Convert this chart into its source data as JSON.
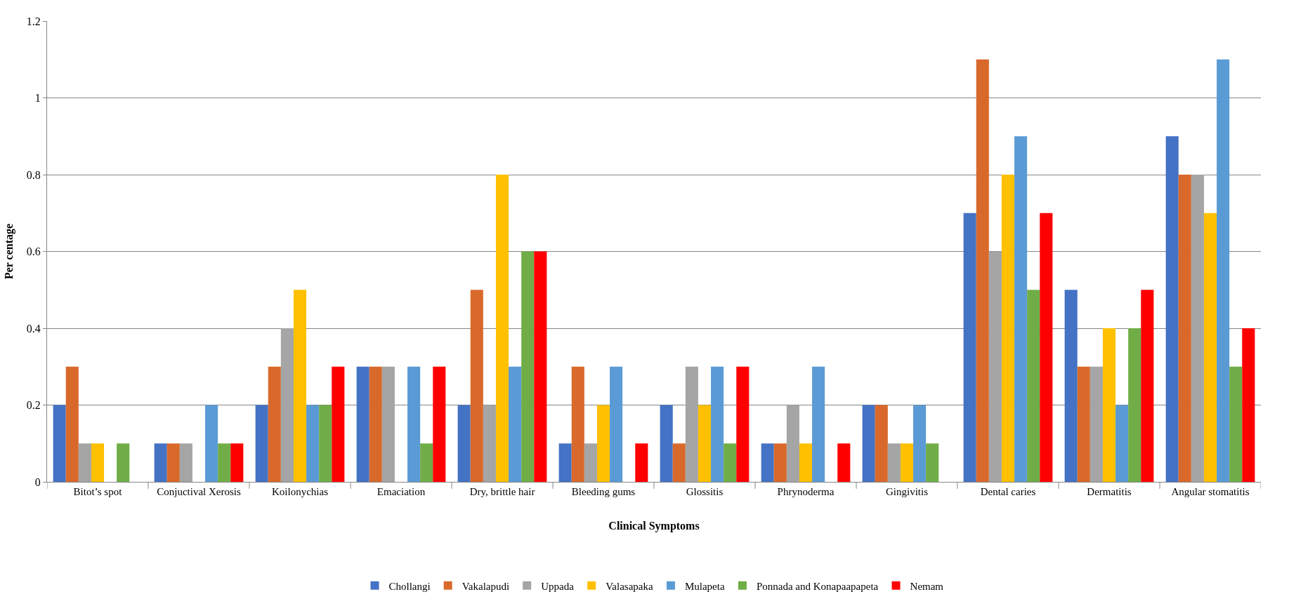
{
  "chart_data": {
    "type": "bar",
    "xlabel": "Clinical Symptoms",
    "ylabel": "Per centage",
    "categories": [
      "Bitot’s spot",
      "Conjuctival Xerosis",
      "Koilonychias",
      "Emaciation",
      "Dry, brittle hair",
      "Bleeding gums",
      "Glossitis",
      "Phrynoderma",
      "Gingivitis",
      "Dental caries",
      "Dermatitis",
      "Angular stomatitis"
    ],
    "series": [
      {
        "name": "Chollangi",
        "color": "#4472c4",
        "values": [
          0.2,
          0.1,
          0.2,
          0.3,
          0.2,
          0.1,
          0.2,
          0.1,
          0.2,
          0.7,
          0.5,
          0.9
        ]
      },
      {
        "name": "Vakalapudi",
        "color": "#d9692b",
        "values": [
          0.3,
          0.1,
          0.3,
          0.3,
          0.5,
          0.3,
          0.1,
          0.1,
          0.2,
          1.1,
          0.3,
          0.8
        ]
      },
      {
        "name": "Uppada",
        "color": "#a5a5a5",
        "values": [
          0.1,
          0.1,
          0.4,
          0.3,
          0.2,
          0.1,
          0.3,
          0.2,
          0.1,
          0.6,
          0.3,
          0.8
        ]
      },
      {
        "name": "Valasapaka",
        "color": "#ffc000",
        "values": [
          0.1,
          0,
          0.5,
          0,
          0.8,
          0.2,
          0.2,
          0.1,
          0.1,
          0.8,
          0.4,
          0.7
        ]
      },
      {
        "name": "Mulapeta",
        "color": "#5b9bd5",
        "values": [
          0,
          0.2,
          0.2,
          0.3,
          0.3,
          0.3,
          0.3,
          0.3,
          0.2,
          0.9,
          0.2,
          1.1
        ]
      },
      {
        "name": "Ponnada and Konapaapapeta",
        "color": "#70ad47",
        "values": [
          0.1,
          0.1,
          0.2,
          0.1,
          0.6,
          0,
          0.1,
          0,
          0.1,
          0.5,
          0.4,
          0.3
        ]
      },
      {
        "name": "Nemam",
        "color": "#ff0000",
        "values": [
          0,
          0.1,
          0.3,
          0.3,
          0.6,
          0.1,
          0.3,
          0.1,
          0,
          0.7,
          0.5,
          0.4
        ]
      }
    ],
    "ylim": [
      0,
      1.2
    ],
    "yticks": [
      0,
      0.2,
      0.4,
      0.6,
      0.8,
      1,
      1.2
    ],
    "grid": "y",
    "legend": "bottom"
  }
}
